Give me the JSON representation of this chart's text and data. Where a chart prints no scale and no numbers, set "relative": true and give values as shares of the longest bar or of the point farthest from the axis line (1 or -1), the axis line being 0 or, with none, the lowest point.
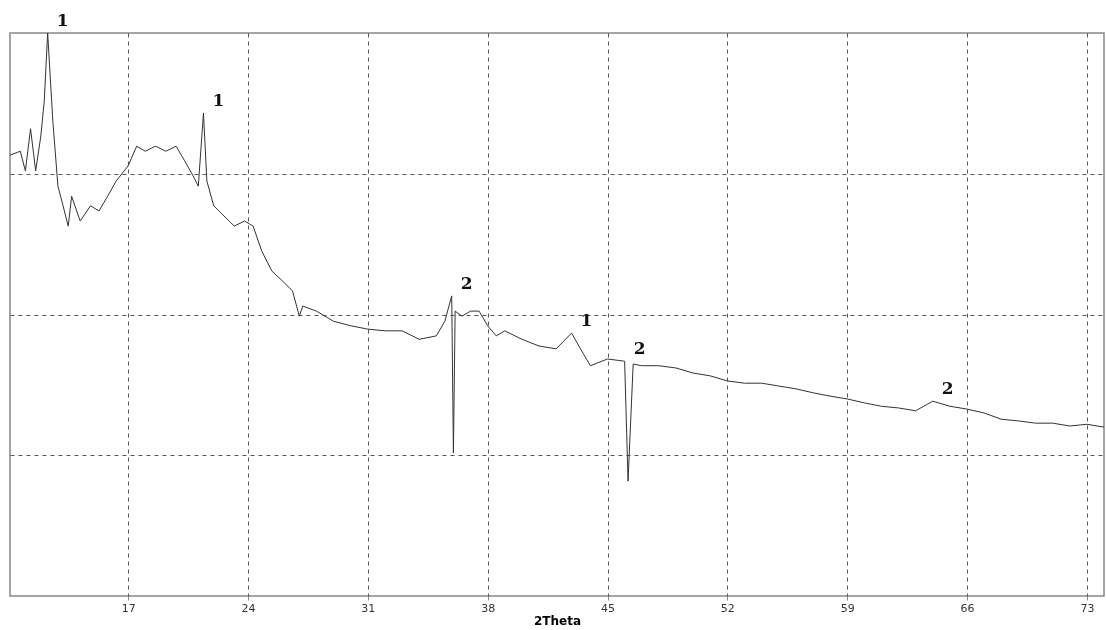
{
  "chart_data": {
    "type": "line",
    "relative": true,
    "xlabel": "2Theta",
    "x": [
      10.1,
      10.7,
      11.0,
      11.3,
      11.6,
      11.9,
      12.1,
      12.3,
      12.6,
      12.9,
      13.2,
      13.5,
      13.7,
      14.2,
      14.8,
      15.3,
      15.8,
      16.3,
      17.0,
      17.5,
      18.0,
      18.6,
      19.2,
      19.8,
      20.3,
      20.8,
      21.1,
      21.4,
      21.6,
      22.0,
      22.6,
      23.2,
      23.8,
      24.3,
      24.8,
      25.4,
      26.0,
      26.6,
      27.0,
      27.2,
      28.0,
      29.0,
      30.0,
      31.0,
      32.0,
      33.0,
      34.0,
      35.0,
      35.5,
      35.9,
      36.0,
      36.1,
      36.5,
      37.0,
      37.5,
      38.0,
      38.5,
      39.0,
      40.0,
      41.0,
      42.0,
      42.9,
      43.5,
      44.0,
      45.0,
      46.0,
      46.2,
      46.5,
      47.0,
      48.0,
      49.0,
      50.0,
      51.0,
      52.0,
      53.0,
      54.0,
      55.0,
      56.0,
      57.0,
      58.0,
      59.0,
      60.0,
      61.0,
      62.0,
      63.0,
      64.0,
      65.0,
      66.0,
      67.0,
      68.0,
      69.0,
      70.0,
      71.0,
      72.0,
      73.0,
      74.0
    ],
    "series": [
      {
        "color": "#333333",
        "values": [
          0.783,
          0.79,
          0.755,
          0.83,
          0.755,
          0.817,
          0.879,
          1.0,
          0.844,
          0.728,
          0.693,
          0.657,
          0.71,
          0.666,
          0.693,
          0.684,
          0.71,
          0.737,
          0.764,
          0.799,
          0.79,
          0.799,
          0.79,
          0.799,
          0.773,
          0.746,
          0.728,
          0.858,
          0.737,
          0.693,
          0.675,
          0.657,
          0.666,
          0.657,
          0.613,
          0.577,
          0.56,
          0.542,
          0.497,
          0.515,
          0.506,
          0.488,
          0.48,
          0.474,
          0.471,
          0.471,
          0.456,
          0.462,
          0.488,
          0.533,
          0.254,
          0.506,
          0.497,
          0.506,
          0.506,
          0.48,
          0.462,
          0.471,
          0.456,
          0.444,
          0.439,
          0.467,
          0.435,
          0.409,
          0.421,
          0.417,
          0.204,
          0.412,
          0.409,
          0.409,
          0.405,
          0.396,
          0.391,
          0.382,
          0.378,
          0.378,
          0.373,
          0.368,
          0.361,
          0.355,
          0.35,
          0.343,
          0.337,
          0.334,
          0.329,
          0.346,
          0.337,
          0.332,
          0.325,
          0.314,
          0.311,
          0.307,
          0.307,
          0.302,
          0.305,
          0.3
        ]
      }
    ],
    "xlim": [
      10.1,
      74
    ],
    "xticks": [
      17,
      24,
      31,
      38,
      45,
      52,
      59,
      66,
      73
    ],
    "grid": true,
    "line_style": "solid",
    "annotations": [
      {
        "text": "1",
        "x": 12.3,
        "y": 1.0
      },
      {
        "text": "1",
        "x": 21.4,
        "y": 0.858
      },
      {
        "text": "2",
        "x": 35.9,
        "y": 0.533
      },
      {
        "text": "1",
        "x": 42.9,
        "y": 0.467
      },
      {
        "text": "2",
        "x": 46.0,
        "y": 0.417
      },
      {
        "text": "2",
        "x": 64.0,
        "y": 0.346
      }
    ]
  }
}
